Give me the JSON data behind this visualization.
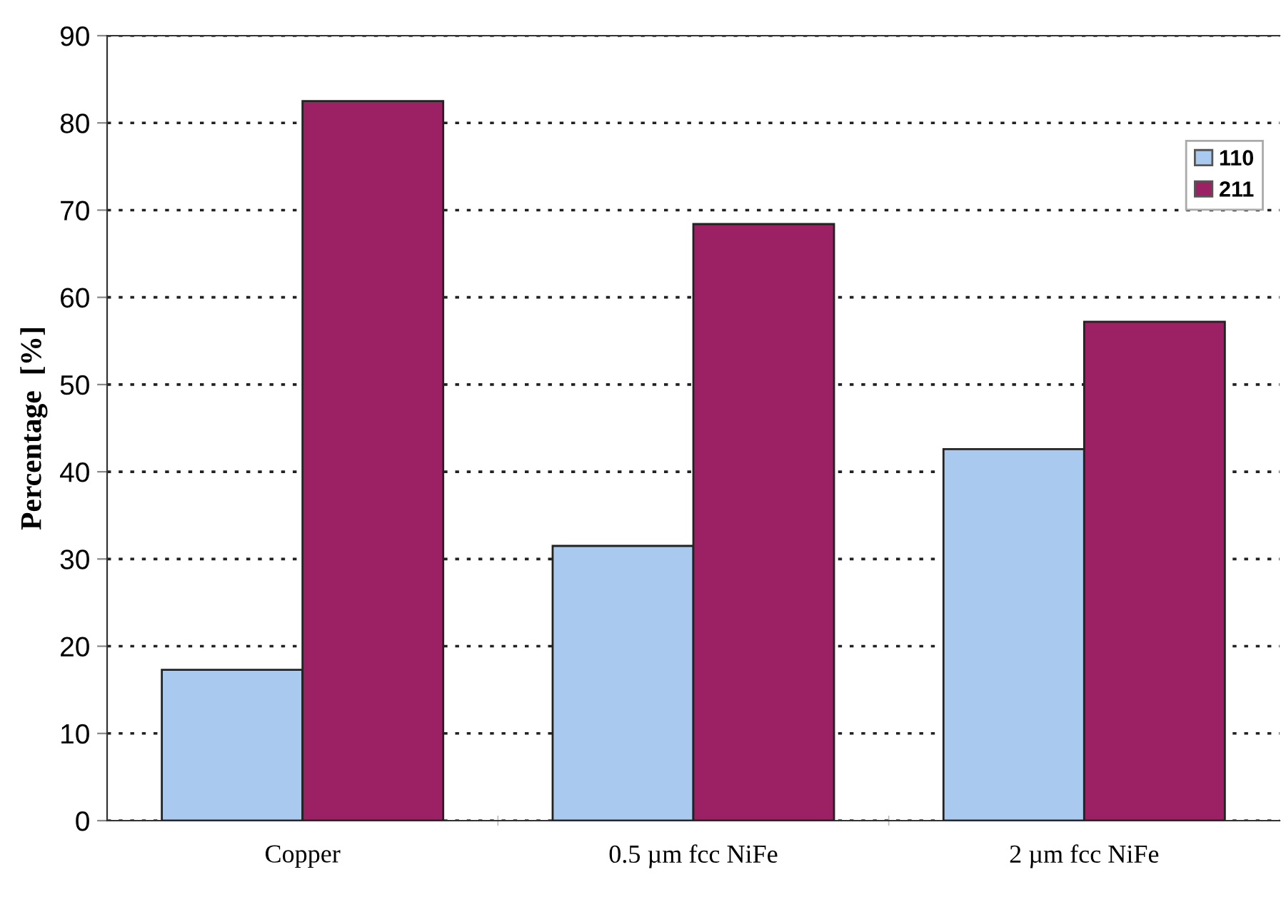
{
  "chart_data": {
    "type": "bar",
    "ylabel": "Percentage  [%]",
    "categories": [
      "Copper",
      "0.5 µm fcc NiFe",
      "2 µm fcc NiFe"
    ],
    "series": [
      {
        "name": "110",
        "color": "#a9c9ee",
        "values": [
          17.3,
          31.5,
          42.6
        ]
      },
      {
        "name": "211",
        "color": "#9b2064",
        "values": [
          82.5,
          68.4,
          57.2
        ]
      }
    ],
    "ylim": [
      0,
      90
    ],
    "yticks": [
      0,
      10,
      20,
      30,
      40,
      50,
      60,
      70,
      80,
      90
    ],
    "grid": "y",
    "legend": "top right"
  }
}
